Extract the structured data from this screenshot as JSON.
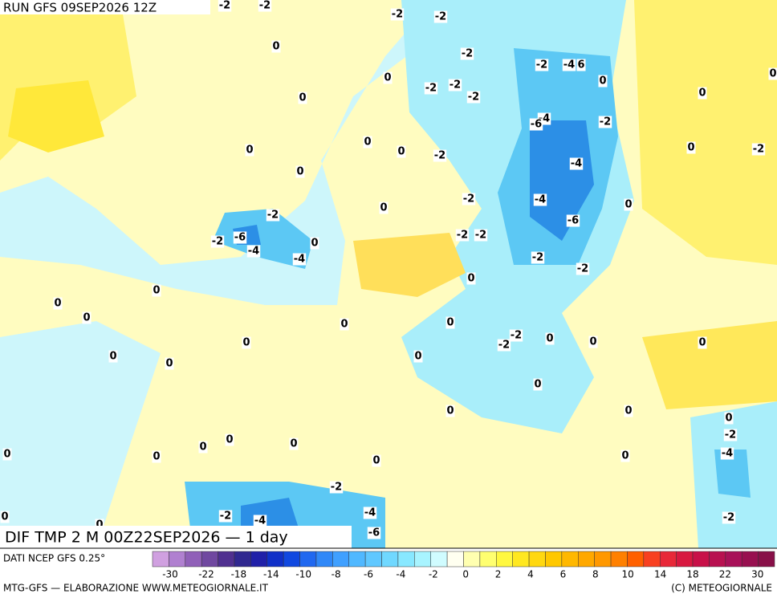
{
  "header": {
    "title": "RUN GFS 09SEP2026 12Z"
  },
  "map": {
    "caption": "DIF TMP 2 M 00Z22SEP2026 — 1 day",
    "labels": [
      -2,
      -2,
      -2,
      -2,
      0,
      -2,
      -2,
      -4,
      6,
      0,
      0,
      0,
      -2,
      -2,
      -2,
      0,
      0,
      -4,
      -6,
      -2,
      0,
      0,
      0,
      0,
      -2,
      -2,
      -4,
      0,
      -2,
      -4,
      0,
      0,
      -2,
      -6,
      -2,
      -6,
      0,
      -2,
      -2,
      -4,
      -4,
      -2,
      -2,
      0,
      0,
      0,
      0,
      0,
      0,
      -2,
      -2,
      0,
      0,
      0,
      0,
      0,
      0,
      0,
      0,
      0,
      0,
      0,
      0,
      0,
      0,
      -2,
      0,
      0,
      0,
      0,
      -4,
      -2,
      0,
      -2,
      -4,
      -4,
      -2,
      0,
      -6
    ]
  },
  "footer": {
    "source": "DATI NCEP GFS 0.25°",
    "credit_left": "MTG-GFS — ELABORAZIONE WWW.METEOGIORNALE.IT",
    "credit_right": "(C) METEOGIORNALE"
  },
  "colorbar": {
    "ticks": [
      -30,
      -22,
      -18,
      -14,
      -10,
      -8,
      -6,
      -4,
      -2,
      0,
      2,
      4,
      6,
      8,
      10,
      14,
      18,
      22,
      30
    ],
    "colors": [
      "#d0a0e0",
      "#b080d0",
      "#9060b8",
      "#7048a0",
      "#503090",
      "#302890",
      "#2020a8",
      "#1030c8",
      "#1048e0",
      "#2068f0",
      "#3088f8",
      "#40a0ff",
      "#50b8ff",
      "#60c8ff",
      "#70d8ff",
      "#88e8ff",
      "#a8f4ff",
      "#d0fcff",
      "#fffff0",
      "#ffffb0",
      "#ffff70",
      "#fff840",
      "#ffe820",
      "#ffd810",
      "#ffc800",
      "#ffb800",
      "#ffa800",
      "#ff9800",
      "#ff8000",
      "#ff6000",
      "#f84020",
      "#e82838",
      "#d81840",
      "#c81048",
      "#b81050",
      "#a81058",
      "#981050",
      "#881048"
    ]
  }
}
